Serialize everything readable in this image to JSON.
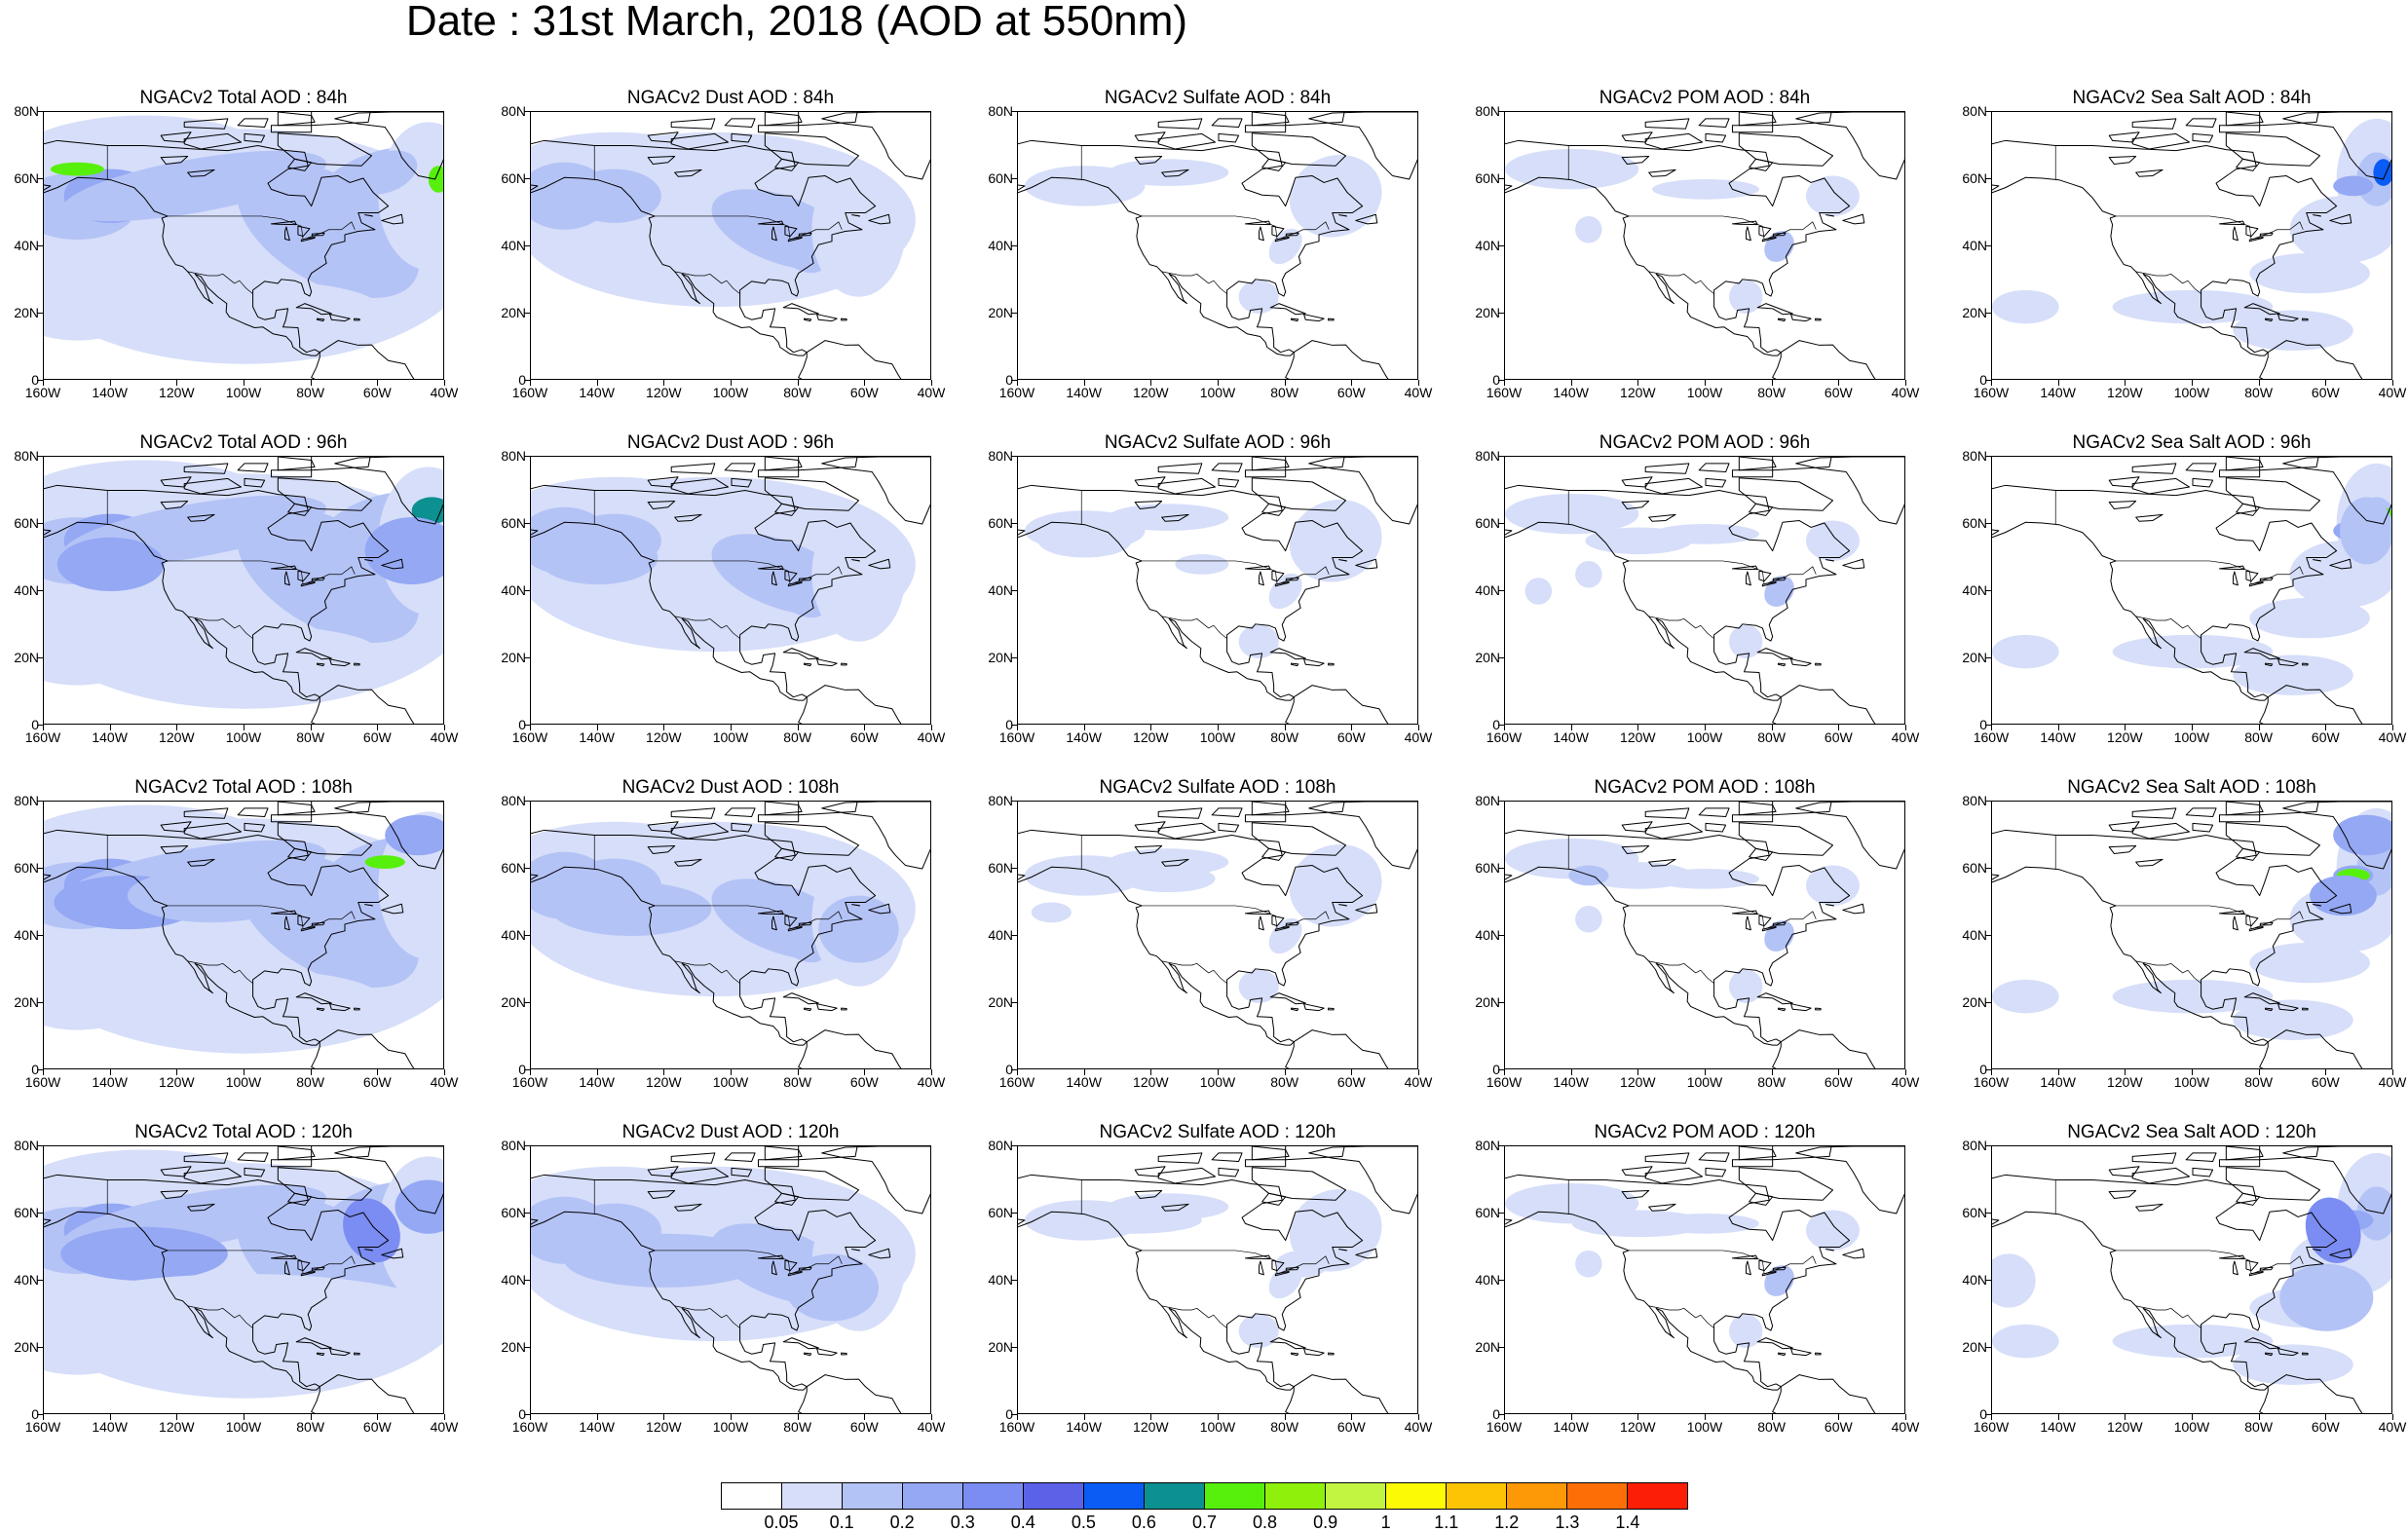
{
  "title": "Date : 31st March, 2018 (AOD at 550nm)",
  "axes": {
    "y_ticks": [
      "80N",
      "60N",
      "40N",
      "20N",
      "0"
    ],
    "x_ticks": [
      "160W",
      "140W",
      "120W",
      "100W",
      "80W",
      "60W",
      "40W"
    ]
  },
  "panels": [
    {
      "title": "NGACv2 Total AOD : 84h",
      "species": "total",
      "hour": 84
    },
    {
      "title": "NGACv2 Dust AOD : 84h",
      "species": "dust",
      "hour": 84
    },
    {
      "title": "NGACv2 Sulfate AOD : 84h",
      "species": "sulfate",
      "hour": 84
    },
    {
      "title": "NGACv2 POM AOD : 84h",
      "species": "pom",
      "hour": 84
    },
    {
      "title": "NGACv2 Sea Salt AOD : 84h",
      "species": "seasalt",
      "hour": 84
    },
    {
      "title": "NGACv2 Total AOD : 96h",
      "species": "total",
      "hour": 96
    },
    {
      "title": "NGACv2 Dust AOD : 96h",
      "species": "dust",
      "hour": 96
    },
    {
      "title": "NGACv2 Sulfate AOD : 96h",
      "species": "sulfate",
      "hour": 96
    },
    {
      "title": "NGACv2 POM AOD : 96h",
      "species": "pom",
      "hour": 96
    },
    {
      "title": "NGACv2 Sea Salt AOD : 96h",
      "species": "seasalt",
      "hour": 96
    },
    {
      "title": "NGACv2 Total AOD : 108h",
      "species": "total",
      "hour": 108
    },
    {
      "title": "NGACv2 Dust AOD : 108h",
      "species": "dust",
      "hour": 108
    },
    {
      "title": "NGACv2 Sulfate AOD : 108h",
      "species": "sulfate",
      "hour": 108
    },
    {
      "title": "NGACv2 POM AOD : 108h",
      "species": "pom",
      "hour": 108
    },
    {
      "title": "NGACv2 Sea Salt AOD : 108h",
      "species": "seasalt",
      "hour": 108
    },
    {
      "title": "NGACv2 Total AOD : 120h",
      "species": "total",
      "hour": 120
    },
    {
      "title": "NGACv2 Dust AOD : 120h",
      "species": "dust",
      "hour": 120
    },
    {
      "title": "NGACv2 Sulfate AOD : 120h",
      "species": "sulfate",
      "hour": 120
    },
    {
      "title": "NGACv2 POM AOD : 120h",
      "species": "pom",
      "hour": 120
    },
    {
      "title": "NGACv2 Sea Salt  AOD : 120h",
      "species": "seasalt",
      "hour": 120
    }
  ],
  "colorbar": {
    "colors": [
      "#ffffff",
      "#d6def9",
      "#b4c3f6",
      "#94a8f4",
      "#7b8cf2",
      "#5b62e8",
      "#0b5cf5",
      "#0c9090",
      "#57f00c",
      "#8ff00c",
      "#c2f542",
      "#fdfa06",
      "#fdc406",
      "#fd9806",
      "#fd6e06",
      "#fd1e06"
    ],
    "labels": [
      "0.05",
      "0.1",
      "0.2",
      "0.3",
      "0.4",
      "0.5",
      "0.6",
      "0.7",
      "0.8",
      "0.9",
      "1",
      "1.1",
      "1.2",
      "1.3",
      "1.4"
    ]
  }
}
